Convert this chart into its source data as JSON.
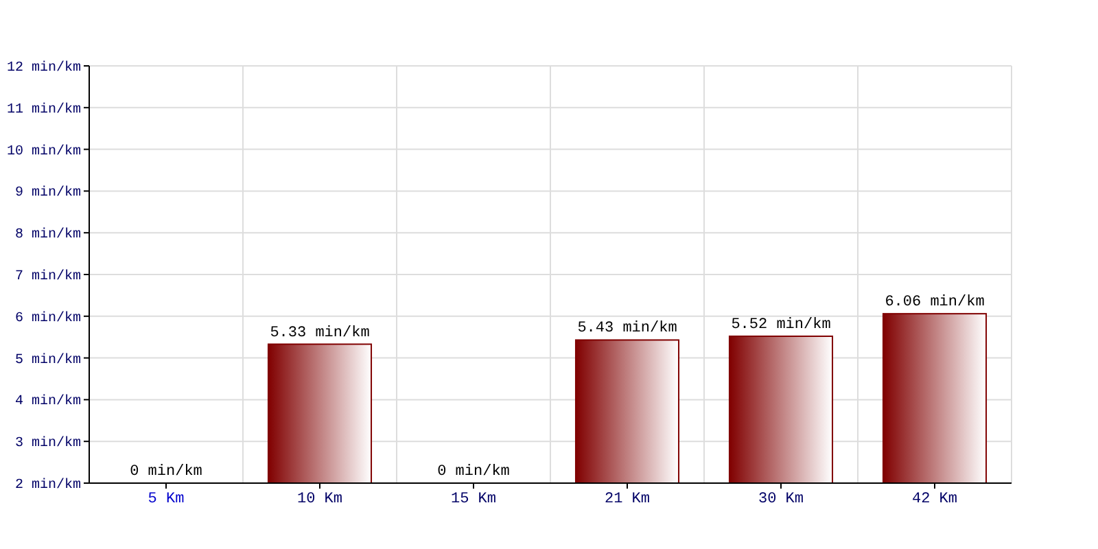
{
  "chart_data": {
    "type": "bar",
    "categories": [
      "5 Km",
      "10 Km",
      "15 Km",
      "21 Km",
      "30 Km",
      "42 Km"
    ],
    "values": [
      null,
      5.33,
      null,
      5.43,
      5.52,
      6.06
    ],
    "value_labels": [
      "0 min/km",
      "5.33 min/km",
      "0 min/km",
      "5.43 min/km",
      "5.52 min/km",
      "6.06 min/km"
    ],
    "color": "#800000",
    "ylim": [
      2,
      12
    ],
    "yticks": [
      {
        "value": 2,
        "label": "2 min/km"
      },
      {
        "value": 3,
        "label": "3 min/km"
      },
      {
        "value": 4,
        "label": "4 min/km"
      },
      {
        "value": 5,
        "label": "5 min/km"
      },
      {
        "value": 6,
        "label": "6 min/km"
      },
      {
        "value": 7,
        "label": "7 min/km"
      },
      {
        "value": 8,
        "label": "8 min/km"
      },
      {
        "value": 9,
        "label": "9 min/km"
      },
      {
        "value": 10,
        "label": "10 min/km"
      },
      {
        "value": 11,
        "label": "11 min/km"
      },
      {
        "value": 12,
        "label": "12 min/km"
      }
    ],
    "grid": true
  }
}
